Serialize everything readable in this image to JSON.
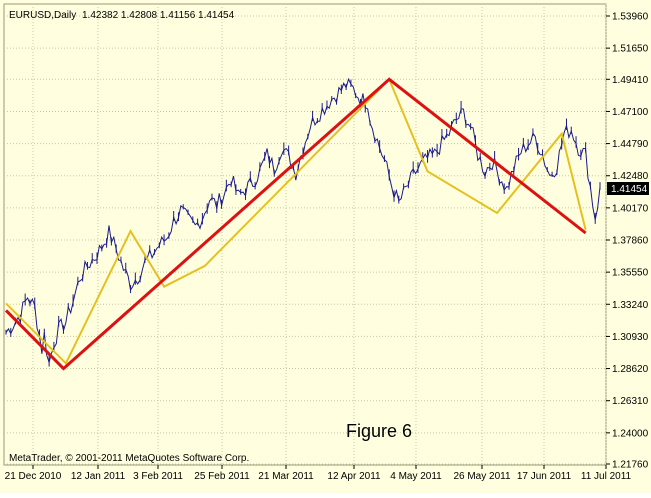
{
  "header": {
    "symbol": "EURUSD,Daily",
    "ohlc": "1.42382 1.42808 1.41156 1.41454"
  },
  "footer": {
    "copyright": "MetaTrader, © 2001-2011 MetaQuotes Software Corp."
  },
  "annotation": "Figure 6",
  "current_price_label": "1.41454",
  "colors": {
    "background": "#ffffe0",
    "grid": "#c8c8a0",
    "price_line": "#1a1a8a",
    "zigzag_major": "#dd1111",
    "zigzag_minor": "#e6c020"
  },
  "chart_data": {
    "type": "line",
    "title": "",
    "ylim": [
      1.2176,
      1.5396
    ],
    "x_tick_labels": [
      "21 Dec 2010",
      "12 Jan 2011",
      "3 Feb 2011",
      "25 Feb 2011",
      "21 Mar 2011",
      "12 Apr 2011",
      "4 May 2011",
      "26 May 2011",
      "17 Jun 2011",
      "11 Jul 2011"
    ],
    "y_tick_labels": [
      "1.53960",
      "1.51650",
      "1.49410",
      "1.47100",
      "1.44790",
      "1.42480",
      "1.40170",
      "1.37860",
      "1.35550",
      "1.33240",
      "1.30930",
      "1.28620",
      "1.26310",
      "1.24000",
      "1.21760"
    ],
    "y_ticks": [
      1.5396,
      1.5165,
      1.4941,
      1.471,
      1.4479,
      1.4248,
      1.4017,
      1.3786,
      1.3555,
      1.3324,
      1.3093,
      1.2862,
      1.2631,
      1.24,
      1.2176
    ],
    "price_series": {
      "index": [
        0,
        3,
        6,
        9,
        12,
        15,
        16,
        18,
        20,
        22,
        25,
        28,
        31,
        34,
        37,
        40,
        43,
        46,
        49,
        52,
        55,
        58,
        61,
        64,
        67,
        70,
        73,
        76,
        79,
        82,
        85,
        88,
        91,
        94,
        97,
        100,
        103,
        106,
        109,
        112,
        115,
        118,
        121,
        124,
        127,
        130,
        133,
        136,
        139,
        142,
        145,
        148,
        151,
        152,
        155,
        158,
        161,
        164,
        167,
        170,
        173,
        176,
        179,
        182,
        185,
        188,
        191,
        194,
        197,
        200,
        203,
        206,
        209,
        212,
        215,
        218,
        221,
        224,
        227,
        230,
        233,
        236,
        239,
        242,
        245,
        246,
        248
      ],
      "close": [
        1.312,
        1.318,
        1.325,
        1.338,
        1.33,
        1.3,
        1.31,
        1.29,
        1.305,
        1.314,
        1.32,
        1.335,
        1.352,
        1.36,
        1.366,
        1.374,
        1.384,
        1.372,
        1.358,
        1.347,
        1.352,
        1.362,
        1.368,
        1.375,
        1.38,
        1.392,
        1.4,
        1.393,
        1.388,
        1.395,
        1.408,
        1.404,
        1.412,
        1.423,
        1.41,
        1.415,
        1.42,
        1.428,
        1.44,
        1.43,
        1.445,
        1.438,
        1.427,
        1.445,
        1.461,
        1.468,
        1.474,
        1.48,
        1.485,
        1.49,
        1.487,
        1.48,
        1.478,
        1.466,
        1.45,
        1.436,
        1.418,
        1.405,
        1.415,
        1.425,
        1.432,
        1.437,
        1.44,
        1.448,
        1.455,
        1.465,
        1.47,
        1.46,
        1.44,
        1.428,
        1.435,
        1.425,
        1.415,
        1.43,
        1.442,
        1.448,
        1.452,
        1.44,
        1.425,
        1.432,
        1.455,
        1.458,
        1.445,
        1.44,
        1.405,
        1.395,
        1.414
      ]
    },
    "zigzag_major": {
      "index": [
        0,
        24,
        160,
        242
      ],
      "price": [
        1.328,
        1.2862,
        1.4941,
        1.3836
      ]
    },
    "zigzag_minor": {
      "index": [
        0,
        25,
        52,
        66,
        83,
        160,
        176,
        205,
        232,
        242
      ],
      "price": [
        1.333,
        1.29,
        1.385,
        1.345,
        1.36,
        1.494,
        1.428,
        1.398,
        1.455,
        1.386
      ]
    }
  }
}
